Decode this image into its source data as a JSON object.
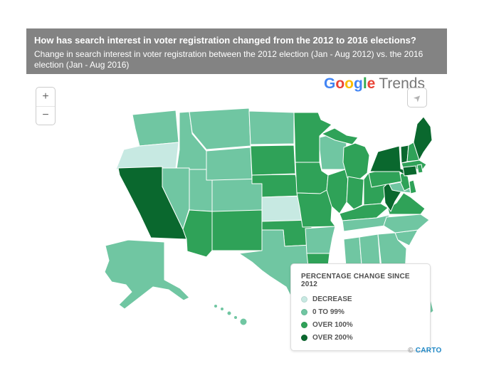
{
  "header": {
    "title": "How has search interest in voter registration changed from the 2012 to 2016 elections?",
    "subtitle": "Change in search interest in voter registration between the 2012 election (Jan - Aug 2012) vs. the 2016 election (Jan - Aug 2016)"
  },
  "branding": {
    "logo_letters": [
      {
        "char": "G",
        "color": "#4285F4"
      },
      {
        "char": "o",
        "color": "#EA4335"
      },
      {
        "char": "o",
        "color": "#FBBC05"
      },
      {
        "char": "g",
        "color": "#4285F4"
      },
      {
        "char": "l",
        "color": "#34A853"
      },
      {
        "char": "e",
        "color": "#EA4335"
      }
    ],
    "logo_suffix": "Trends",
    "attribution_symbol": "©",
    "attribution_name": "CARTO"
  },
  "controls": {
    "zoom_in_label": "+",
    "zoom_out_label": "−",
    "share_icon_glyph": "➤"
  },
  "legend": {
    "title": "PERCENTAGE CHANGE SINCE 2012",
    "items": [
      {
        "label": "DECREASE",
        "category": "decrease",
        "color": "#c7e9e2"
      },
      {
        "label": "0 TO 99%",
        "category": "0to99",
        "color": "#70c6a2"
      },
      {
        "label": "OVER 100%",
        "category": "over100",
        "color": "#2fa258"
      },
      {
        "label": "OVER 200%",
        "category": "over200",
        "color": "#0a682e"
      }
    ]
  },
  "map": {
    "category_colors": {
      "decrease": "#c7e9e2",
      "0to99": "#70c6a2",
      "over100": "#2fa258",
      "over200": "#0a682e"
    },
    "states": {
      "WA": "0to99",
      "OR": "decrease",
      "CA": "over200",
      "NV": "0to99",
      "ID": "0to99",
      "MT": "0to99",
      "WY": "0to99",
      "UT": "0to99",
      "CO": "0to99",
      "AZ": "over100",
      "NM": "over100",
      "ND": "0to99",
      "SD": "over100",
      "NE": "over100",
      "KS": "decrease",
      "OK": "over100",
      "TX": "0to99",
      "MN": "over100",
      "IA": "over100",
      "MO": "over100",
      "WI": "0to99",
      "IL": "over100",
      "IN": "over100",
      "MI": "over100",
      "OH": "over100",
      "KY": "over100",
      "TN": "0to99",
      "AR": "0to99",
      "LA": "over100",
      "MS": "0to99",
      "AL": "0to99",
      "GA": "0to99",
      "FL": "0to99",
      "SC": "0to99",
      "NC": "0to99",
      "VA": "over100",
      "WV": "over200",
      "MD": "0to99",
      "DE": "over100",
      "NJ": "over100",
      "PA": "over100",
      "NY": "over200",
      "CT": "over200",
      "RI": "over100",
      "MA": "over100",
      "VT": "over200",
      "NH": "over100",
      "ME": "over200",
      "AK": "0to99",
      "HI": "0to99"
    }
  },
  "chart_data": {
    "type": "choropleth",
    "title": "How has search interest in voter registration changed from the 2012 to 2016 elections?",
    "subtitle": "Change in search interest in voter registration between the 2012 election (Jan - Aug 2012) vs. the 2016 election (Jan - Aug 2016)",
    "legend_title": "PERCENTAGE CHANGE SINCE 2012",
    "legend_position": "bottom-right",
    "categories": [
      {
        "label": "DECREASE",
        "key": "decrease",
        "color": "#c7e9e2"
      },
      {
        "label": "0 TO 99%",
        "key": "0to99",
        "color": "#70c6a2"
      },
      {
        "label": "OVER 100%",
        "key": "over100",
        "color": "#2fa258"
      },
      {
        "label": "OVER 200%",
        "key": "over200",
        "color": "#0a682e"
      }
    ],
    "values_by_state": {
      "decrease": [
        "OR",
        "KS"
      ],
      "0to99": [
        "WA",
        "ID",
        "MT",
        "WY",
        "NV",
        "UT",
        "CO",
        "ND",
        "TX",
        "AR",
        "MS",
        "AL",
        "GA",
        "FL",
        "SC",
        "NC",
        "TN",
        "WI",
        "MD",
        "AK",
        "HI"
      ],
      "over100": [
        "MN",
        "SD",
        "NE",
        "OK",
        "LA",
        "MO",
        "IA",
        "IL",
        "IN",
        "MI",
        "OH",
        "KY",
        "AZ",
        "NM",
        "PA",
        "VA",
        "NJ",
        "DE",
        "NH",
        "MA",
        "RI"
      ],
      "over200": [
        "CA",
        "NY",
        "VT",
        "ME",
        "WV",
        "CT"
      ]
    }
  }
}
